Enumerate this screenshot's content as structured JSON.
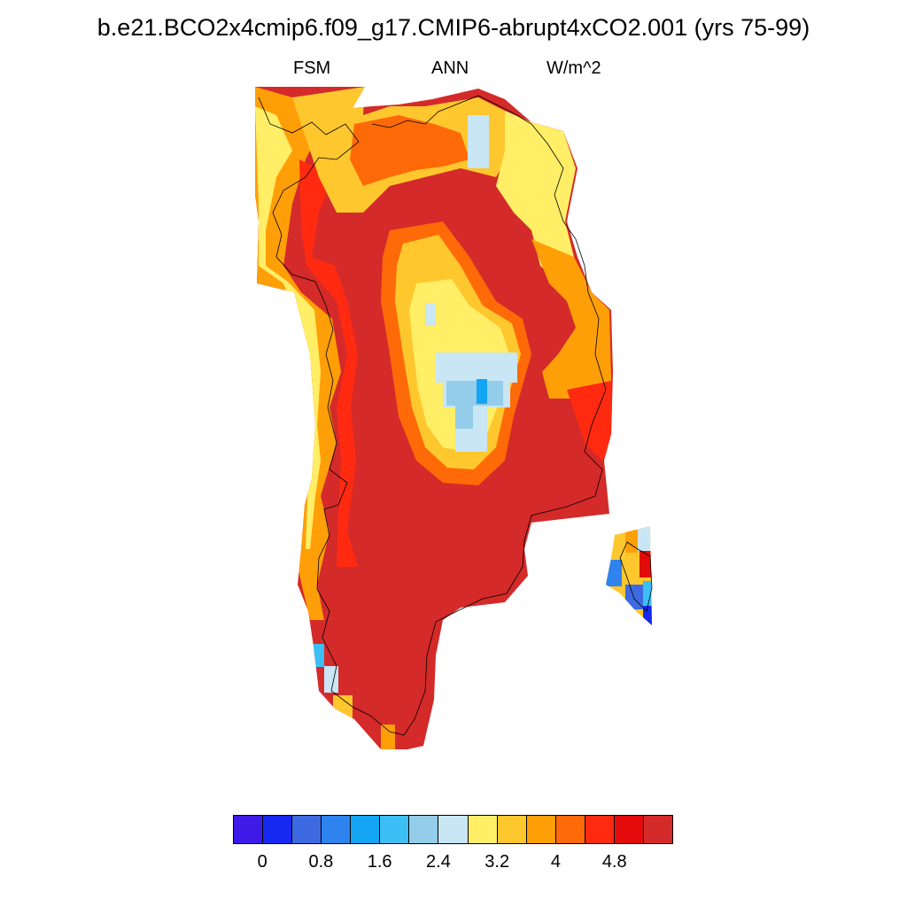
{
  "title": "b.e21.BCO2x4cmip6.f09_g17.CMIP6-abrupt4xCO2.001 (yrs 75-99)",
  "subtitle": {
    "left": "FSM",
    "center": "ANN",
    "right": "W/m^2"
  },
  "colorbar": {
    "colors": [
      "#3d1ae8",
      "#1529f0",
      "#3d6ae0",
      "#2e83ee",
      "#14a5f5",
      "#3bbff5",
      "#93cde9",
      "#c8e6f4",
      "#ffee66",
      "#ffc72e",
      "#ff9f08",
      "#ff6a08",
      "#ff2a10",
      "#e30b0b",
      "#d42a2a"
    ],
    "tick_labels": [
      "0",
      "0.8",
      "1.6",
      "2.4",
      "3.2",
      "4",
      "4.8"
    ]
  },
  "map": {
    "region": "Greenland",
    "field": "FSM",
    "period": "ANN",
    "units": "W/m^2"
  }
}
